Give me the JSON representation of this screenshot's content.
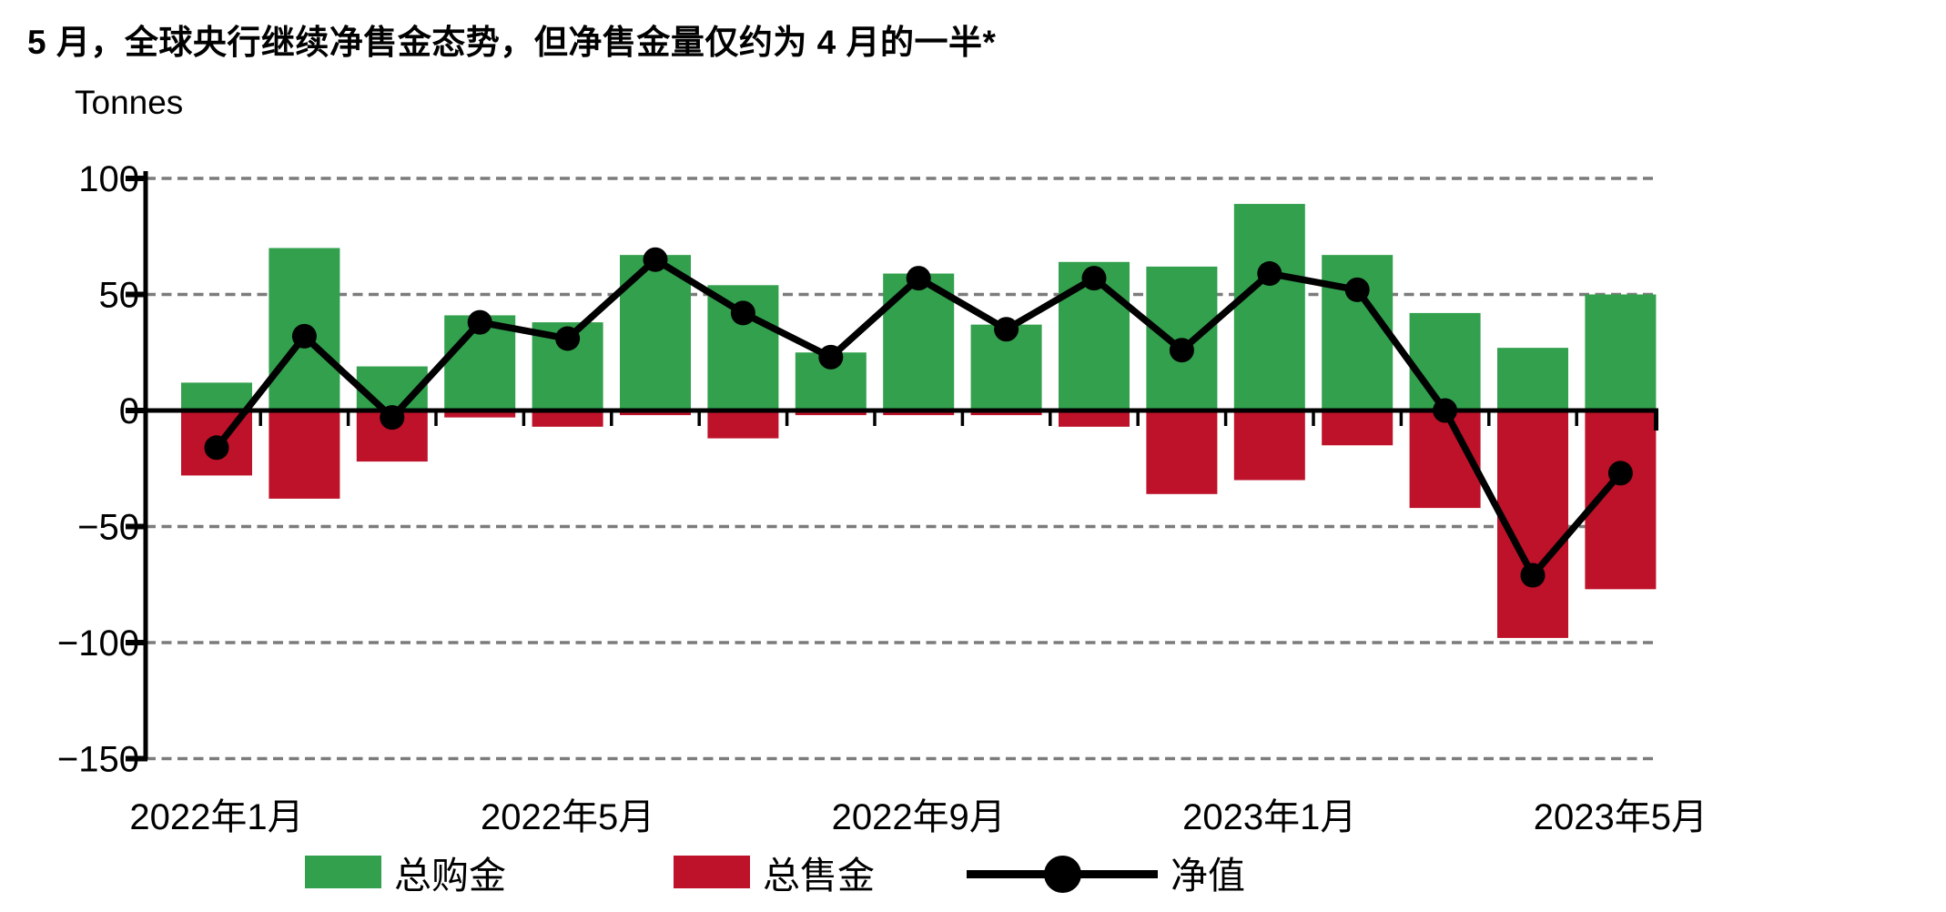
{
  "page": {
    "title": "5 月，全球央行继续净售金态势，但净售金量仅约为 4 月的一半*"
  },
  "chart_data": {
    "type": "combo-bar-line",
    "title": "5 月，全球央行继续净售金态势，但净售金量仅约为 4 月的一半*",
    "unit_label": "Tonnes",
    "categories": [
      "2022年1月",
      "2022年2月",
      "2022年3月",
      "2022年4月",
      "2022年5月",
      "2022年6月",
      "2022年7月",
      "2022年8月",
      "2022年9月",
      "2022年10月",
      "2022年11月",
      "2022年12月",
      "2023年1月",
      "2023年2月",
      "2023年3月",
      "2023年4月",
      "2023年5月"
    ],
    "series": [
      {
        "name": "总购金",
        "type": "bar",
        "color": "#32a04d",
        "values": [
          12,
          70,
          19,
          41,
          38,
          67,
          54,
          25,
          59,
          37,
          64,
          62,
          89,
          67,
          42,
          27,
          50
        ]
      },
      {
        "name": "总售金",
        "type": "bar",
        "color": "#bd1229",
        "values": [
          -28,
          -38,
          -22,
          -3,
          -7,
          -2,
          -12,
          -2,
          -2,
          -2,
          -7,
          -36,
          -30,
          -15,
          -42,
          -98,
          -77
        ]
      },
      {
        "name": "净值",
        "type": "line",
        "color": "#000000",
        "values": [
          -16,
          32,
          -3,
          38,
          31,
          65,
          42,
          23,
          57,
          35,
          57,
          26,
          59,
          52,
          0,
          -71,
          -27
        ]
      }
    ],
    "x_tick_labels": [
      "2022年1月",
      "2022年5月",
      "2022年9月",
      "2023年1月",
      "2023年5月"
    ],
    "x_tick_positions": [
      0,
      4,
      8,
      12,
      16
    ],
    "y_ticks": [
      100,
      50,
      0,
      -50,
      -100,
      -150
    ],
    "y_tick_labels": [
      "100",
      "50",
      "0",
      "−50",
      "−100",
      "−150"
    ],
    "ylim": [
      -150,
      100
    ],
    "xlabel": "",
    "ylabel": "Tonnes",
    "grid": "horizontal-dashed-except-zero",
    "zero_line": "solid-black",
    "legend_position": "bottom",
    "colors": {
      "grid": "#7b7b7b",
      "axis": "#000000",
      "text": "#000000",
      "background": "#ffffff"
    }
  }
}
